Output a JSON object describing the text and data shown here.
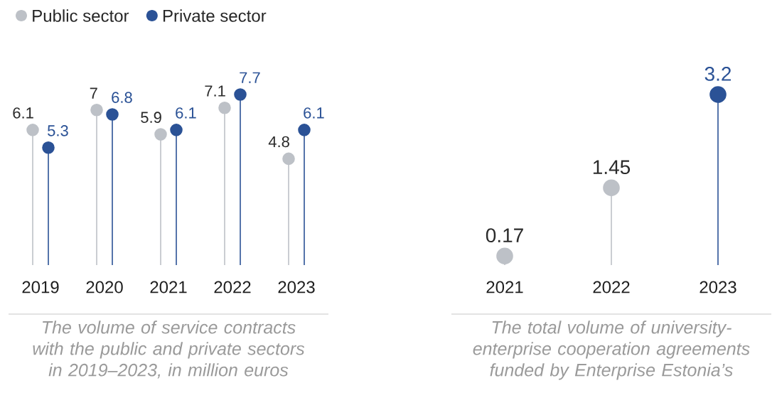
{
  "chart_data": [
    {
      "type": "lollipop",
      "categories": [
        "2019",
        "2020",
        "2021",
        "2022",
        "2023"
      ],
      "series": [
        {
          "name": "Public sector",
          "color": "#bdc1c7",
          "values": [
            6.1,
            7,
            5.9,
            7.1,
            4.8
          ]
        },
        {
          "name": "Private sector",
          "color": "#2b5296",
          "values": [
            5.3,
            6.8,
            6.1,
            7.7,
            6.1
          ]
        }
      ],
      "data_labels": true,
      "legend": "top left",
      "marker": "circle",
      "annotations": [
        "The volume of service contracts with the public and private sectors in 2019–2023, in million euros"
      ]
    },
    {
      "type": "lollipop",
      "categories": [
        "2021",
        "2022",
        "2023"
      ],
      "values": [
        0.17,
        1.45,
        3.2
      ],
      "colors": [
        "#bdc1c7",
        "#bdc1c7",
        "#2b5296"
      ],
      "data_labels": true,
      "marker": "circle",
      "annotations": [
        "The total volume of university-enterprise cooperation agreements funded by Enterprise Estonia’s"
      ]
    }
  ]
}
